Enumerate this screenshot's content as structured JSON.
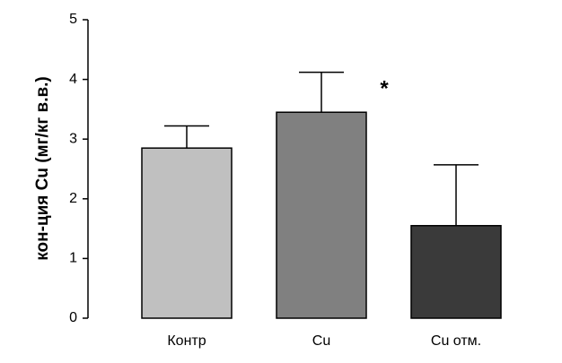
{
  "chart_data": {
    "type": "bar",
    "y_label": "кон-ция Cu (мг/кг в.в.)",
    "categories": [
      "Контр",
      "Cu",
      "Cu отм."
    ],
    "values": [
      2.85,
      3.45,
      1.55
    ],
    "errors": [
      0.37,
      0.67,
      1.02
    ],
    "colors": [
      "#c0c0c0",
      "#808080",
      "#3a3a3a"
    ],
    "annotation": "*",
    "ylim": [
      0,
      5
    ],
    "yticks": [
      0,
      1,
      2,
      3,
      4,
      5
    ]
  }
}
